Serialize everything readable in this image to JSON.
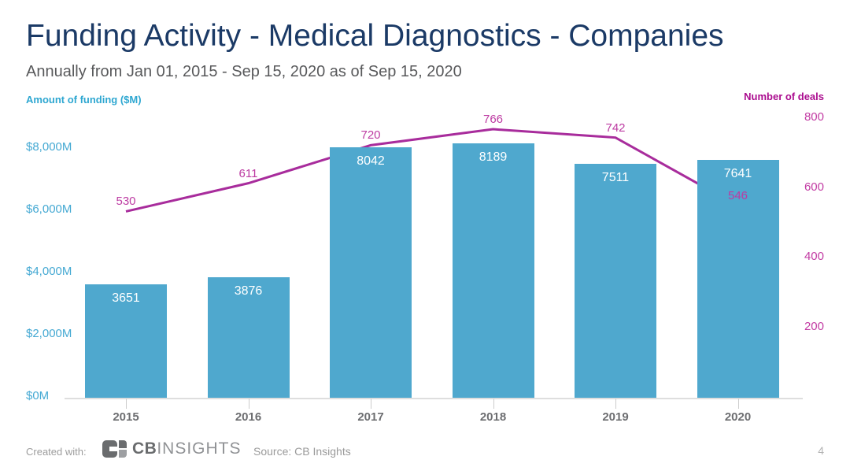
{
  "header": {
    "title": "Funding Activity - Medical Diagnostics - Companies",
    "subtitle": "Annually from Jan 01, 2015 - Sep 15, 2020 as of Sep 15, 2020"
  },
  "chart_data": {
    "type": "combo",
    "categories": [
      "2015",
      "2016",
      "2017",
      "2018",
      "2019",
      "2020"
    ],
    "series": [
      {
        "name": "Amount of funding ($M)",
        "type": "bar",
        "values": [
          3651,
          3876,
          8042,
          8189,
          7511,
          7641
        ],
        "color": "#4fa8ce"
      },
      {
        "name": "Number of deals",
        "type": "line",
        "values": [
          530,
          611,
          720,
          766,
          742,
          546
        ],
        "color": "#a82c9c",
        "label_color": "#bd3ba2"
      }
    ],
    "left_axis": {
      "label": "Amount of funding ($M)",
      "tick_labels": [
        "$0M",
        "$2,000M",
        "$4,000M",
        "$6,000M",
        "$8,000M"
      ],
      "tick_values": [
        0,
        2000,
        4000,
        6000,
        8000
      ],
      "range": [
        0,
        9200
      ],
      "color": "#2ea7d1"
    },
    "right_axis": {
      "label": "Number of deals",
      "tick_labels": [
        "200",
        "400",
        "600",
        "800"
      ],
      "tick_values": [
        200,
        400,
        600,
        800
      ],
      "range": [
        0,
        820
      ],
      "color": "#ab0d8f"
    },
    "grid": false,
    "legend": "none"
  },
  "footer": {
    "created_with": "Created with:",
    "logo_cb": "CB",
    "logo_insights": "INSIGHTS",
    "source": "Source: CB Insights",
    "page_number": "4"
  }
}
